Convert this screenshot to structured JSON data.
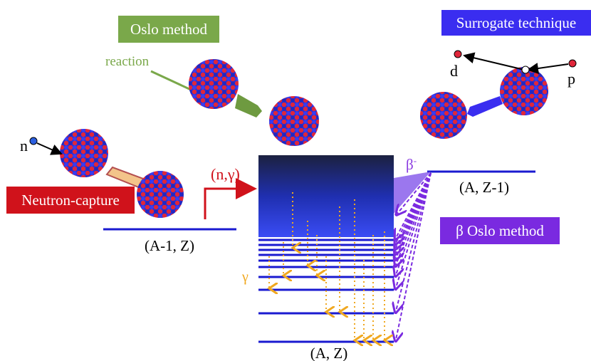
{
  "boxes": {
    "oslo_method": "Oslo method",
    "surrogate": "Surrogate technique",
    "neutron_capture": "Neutron-capture",
    "beta_oslo": "β Oslo method"
  },
  "labels": {
    "reaction": "reaction",
    "d": "d",
    "p": "p",
    "n": "n",
    "n_gamma": "(n,γ)",
    "beta": "β",
    "beta_charge": "-",
    "gamma": "γ"
  },
  "levels": {
    "a_minus_1_z": "(A-1, Z)",
    "a_z_minus_1": "(A, Z-1)",
    "a_z": "(A, Z)"
  }
}
